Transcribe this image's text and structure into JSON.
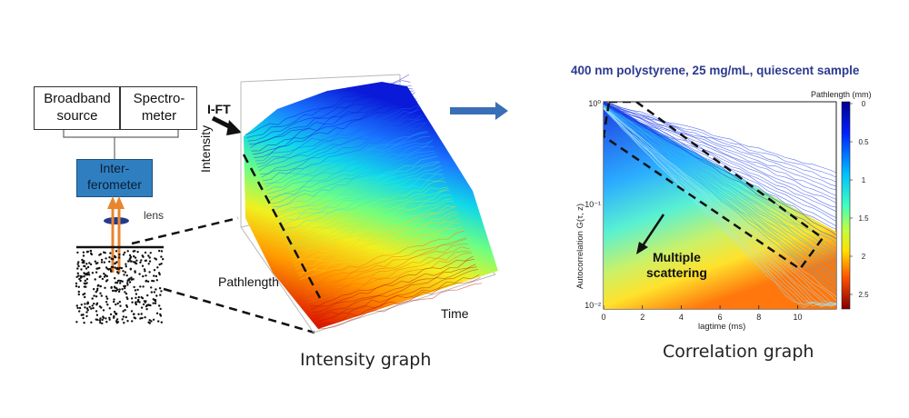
{
  "left_panel": {
    "source_label": "Broadband source",
    "source_line1": "Broadband",
    "source_line2": "source",
    "spectrometer_line1": "Spectro-",
    "spectrometer_line2": "meter",
    "interferometer_line1": "Inter-",
    "interferometer_line2": "ferometer",
    "lens_label": "lens",
    "ift_label": "I-FT"
  },
  "surface_plot": {
    "z_label": "Intensity",
    "y_label": "Pathlength",
    "x_label": "Time",
    "caption": "Intensity graph"
  },
  "correlation_plot": {
    "title": "400 nm polystyrene, 25 mg/mL, quiescent sample",
    "ylabel": "Autocorrelation G(τ, z)",
    "xlabel": "lagtime (ms)",
    "colorbar_label": "Pathlength (mm)",
    "annotation_line1": "Multiple",
    "annotation_line2": "scattering",
    "caption": "Correlation graph",
    "x_ticks": [
      "0",
      "2",
      "4",
      "6",
      "8",
      "10"
    ],
    "y_ticks": [
      "10⁰",
      "10⁻¹",
      "10⁻²"
    ],
    "colorbar_ticks": [
      "0",
      "0.5",
      "1",
      "1.5",
      "2",
      "2.5"
    ]
  },
  "colors": {
    "interferometer_fill": "#2f7fc0",
    "arrow_blue": "#3a6fb7",
    "title_color": "#2b3a8f"
  }
}
